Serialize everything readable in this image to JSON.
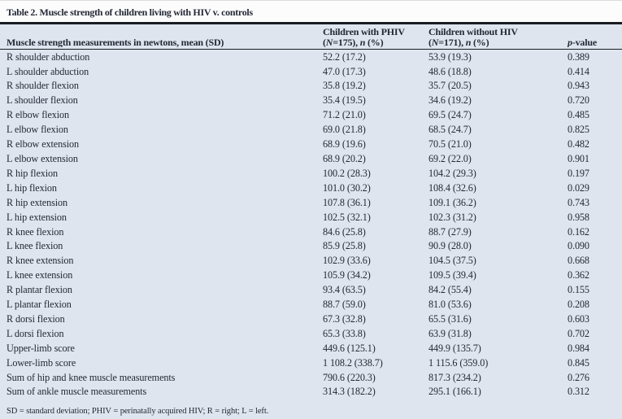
{
  "figure": {
    "title": "Table 2. Muscle strength of children living with HIV v. controls",
    "columns": {
      "measurements": "Muscle strength measurements in newtons, mean (SD)",
      "phiv": {
        "line1": "Children with PHIV",
        "open": "(",
        "N": "N",
        "count": "=175), ",
        "n": "n",
        "pct": " (%)"
      },
      "control": {
        "line1": "Children without HIV",
        "open": "(",
        "N": "N",
        "count": "=171), ",
        "n": "n",
        "pct": " (%)"
      },
      "pvalue": {
        "p": "p",
        "rest": "-value"
      }
    },
    "rows": [
      {
        "label": "R shoulder abduction",
        "phiv": "52.2 (17.2)",
        "control": "53.9 (19.3)",
        "p": "0.389"
      },
      {
        "label": "L shoulder abduction",
        "phiv": "47.0 (17.3)",
        "control": "48.6 (18.8)",
        "p": "0.414"
      },
      {
        "label": "R shoulder flexion",
        "phiv": "35.8 (19.2)",
        "control": "35.7 (20.5)",
        "p": "0.943"
      },
      {
        "label": "L shoulder flexion",
        "phiv": "35.4 (19.5)",
        "control": "34.6 (19.2)",
        "p": "0.720"
      },
      {
        "label": "R elbow flexion",
        "phiv": "71.2 (21.0)",
        "control": "69.5 (24.7)",
        "p": "0.485"
      },
      {
        "label": "L elbow flexion",
        "phiv": "69.0 (21.8)",
        "control": "68.5 (24.7)",
        "p": "0.825"
      },
      {
        "label": "R elbow extension",
        "phiv": "68.9 (19.6)",
        "control": "70.5 (21.0)",
        "p": "0.482"
      },
      {
        "label": "L elbow extension",
        "phiv": "68.9 (20.2)",
        "control": "69.2 (22.0)",
        "p": "0.901"
      },
      {
        "label": "R hip flexion",
        "phiv": "100.2 (28.3)",
        "control": "104.2 (29.3)",
        "p": "0.197"
      },
      {
        "label": "L hip flexion",
        "phiv": "101.0 (30.2)",
        "control": "108.4 (32.6)",
        "p": "0.029"
      },
      {
        "label": "R hip extension",
        "phiv": "107.8 (36.1)",
        "control": "109.1 (36.2)",
        "p": "0.743"
      },
      {
        "label": "L hip extension",
        "phiv": "102.5 (32.1)",
        "control": "102.3 (31.2)",
        "p": "0.958"
      },
      {
        "label": "R knee flexion",
        "phiv": "84.6 (25.8)",
        "control": "88.7 (27.9)",
        "p": "0.162"
      },
      {
        "label": "L knee flexion",
        "phiv": "85.9 (25.8)",
        "control": "90.9 (28.0)",
        "p": "0.090"
      },
      {
        "label": "R knee extension",
        "phiv": "102.9 (33.6)",
        "control": "104.5 (37.5)",
        "p": "0.668"
      },
      {
        "label": "L knee extension",
        "phiv": "105.9 (34.2)",
        "control": "109.5 (39.4)",
        "p": "0.362"
      },
      {
        "label": "R plantar flexion",
        "phiv": "93.4 (63.5)",
        "control": "84.2 (55.4)",
        "p": "0.155"
      },
      {
        "label": "L plantar flexion",
        "phiv": "88.7 (59.0)",
        "control": "81.0 (53.6)",
        "p": "0.208"
      },
      {
        "label": "R dorsi flexion",
        "phiv": "67.3 (32.8)",
        "control": "65.5 (31.6)",
        "p": "0.603"
      },
      {
        "label": "L dorsi flexion",
        "phiv": "65.3 (33.8)",
        "control": "63.9 (31.8)",
        "p": "0.702"
      },
      {
        "label": "Upper-limb score",
        "phiv": "449.6 (125.1)",
        "control": "449.9 (135.7)",
        "p": "0.984"
      },
      {
        "label": "Lower-limb score",
        "phiv": "1 108.2 (338.7)",
        "control": "1 115.6 (359.0)",
        "p": "0.845"
      },
      {
        "label": "Sum of hip and knee muscle measurements",
        "phiv": "790.6 (220.3)",
        "control": "817.3 (234.2)",
        "p": "0.276"
      },
      {
        "label": "Sum of ankle muscle measurements",
        "phiv": "314.3 (182.2)",
        "control": "295.1 (166.1)",
        "p": "0.312"
      }
    ],
    "footnote": "SD = standard deviation; PHIV = perinatally acquired HIV; R = right; L = left.",
    "colors": {
      "body_bg": "#dfe5ef",
      "title_bg": "#fcfcfd",
      "text": "#242935",
      "rule": "#191c22"
    }
  }
}
